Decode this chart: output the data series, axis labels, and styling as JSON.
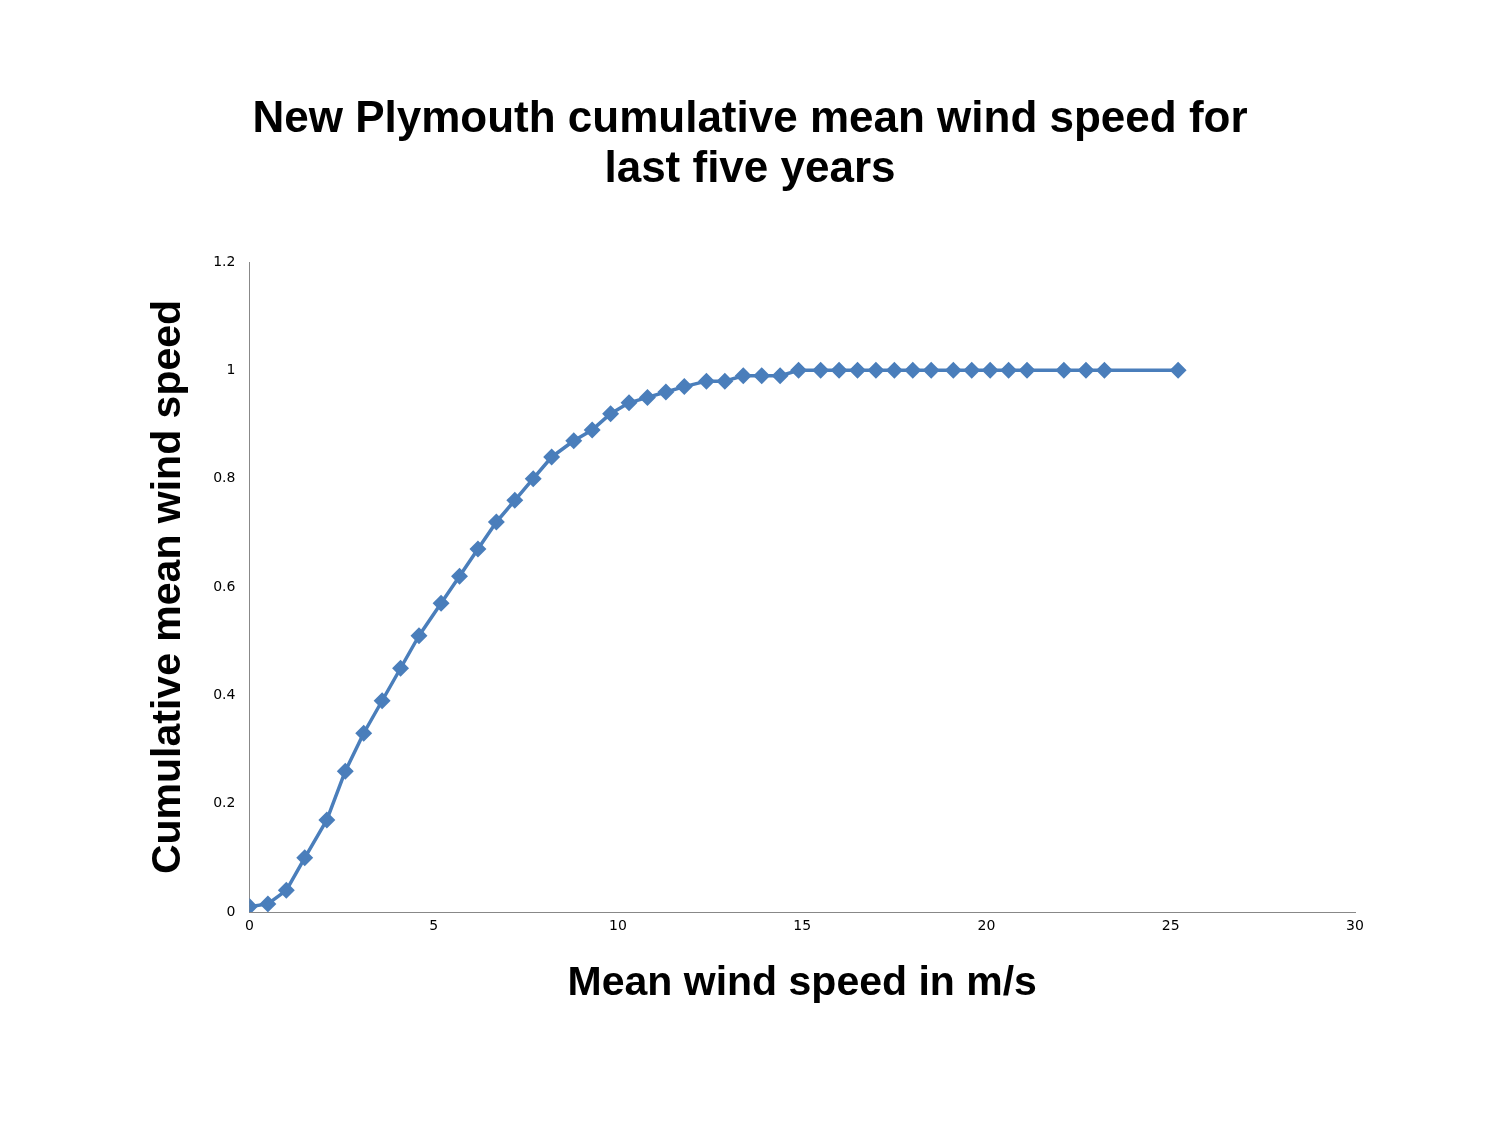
{
  "chart_data": {
    "type": "line",
    "title": "New Plymouth cumulative mean wind speed for last five years",
    "xlabel": "Mean wind speed in m/s",
    "ylabel": "Cumulative mean wind speed",
    "x": [
      0,
      0.5,
      1,
      1.5,
      2.1,
      2.6,
      3.1,
      3.6,
      4.1,
      4.6,
      5.2,
      5.7,
      6.2,
      6.7,
      7.2,
      7.7,
      8.2,
      8.8,
      9.3,
      9.8,
      10.3,
      10.8,
      11.3,
      11.8,
      12.4,
      12.9,
      13.4,
      13.9,
      14.4,
      14.9,
      15.5,
      16,
      16.5,
      17,
      17.5,
      18,
      18.5,
      19.1,
      19.6,
      20.1,
      20.6,
      21.1,
      22.1,
      22.7,
      23.2,
      25.2
    ],
    "series": [
      {
        "color": "#4a7ebb",
        "values": [
          0.01,
          0.015,
          0.04,
          0.1,
          0.17,
          0.26,
          0.33,
          0.39,
          0.45,
          0.51,
          0.57,
          0.62,
          0.67,
          0.72,
          0.76,
          0.8,
          0.84,
          0.87,
          0.89,
          0.92,
          0.94,
          0.95,
          0.96,
          0.97,
          0.98,
          0.98,
          0.99,
          0.99,
          0.99,
          1,
          1,
          1,
          1,
          1,
          1,
          1,
          1,
          1,
          1,
          1,
          1,
          1,
          1,
          1,
          1,
          1
        ]
      }
    ],
    "xlim": [
      0,
      30
    ],
    "xticks": [
      0,
      5,
      10,
      15,
      20,
      25,
      30
    ],
    "ylim": [
      0,
      1.2
    ],
    "yticks": [
      0,
      0.2,
      0.4,
      0.6,
      0.8,
      1,
      1.2
    ],
    "grid": false,
    "legend": false,
    "marker": "diamond",
    "line_style": "solid"
  }
}
